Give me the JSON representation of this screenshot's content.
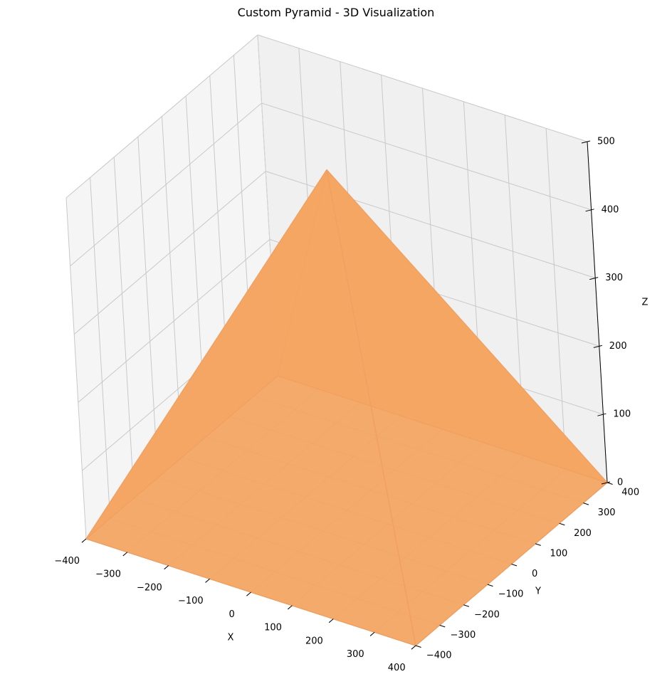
{
  "chart_data": {
    "type": "surface3d",
    "title": "Custom Pyramid - 3D Visualization",
    "xlabel": "X",
    "ylabel": "Y",
    "zlabel": "Z",
    "xlim": [
      -400,
      400
    ],
    "ylim": [
      -400,
      400
    ],
    "zlim": [
      0,
      500
    ],
    "xticks": [
      -400,
      -300,
      -200,
      -100,
      0,
      100,
      200,
      300,
      400
    ],
    "yticks": [
      -400,
      -300,
      -200,
      -100,
      0,
      100,
      200,
      300,
      400
    ],
    "zticks": [
      0,
      100,
      200,
      300,
      400,
      500
    ],
    "grid": true,
    "color": "#f4a460",
    "edge_color": "#f0a060",
    "pyramid": {
      "base_vertices": [
        [
          -400,
          -400,
          0
        ],
        [
          400,
          -400,
          0
        ],
        [
          400,
          400,
          0
        ],
        [
          -400,
          400,
          0
        ]
      ],
      "apex": [
        0,
        0,
        500
      ]
    }
  }
}
